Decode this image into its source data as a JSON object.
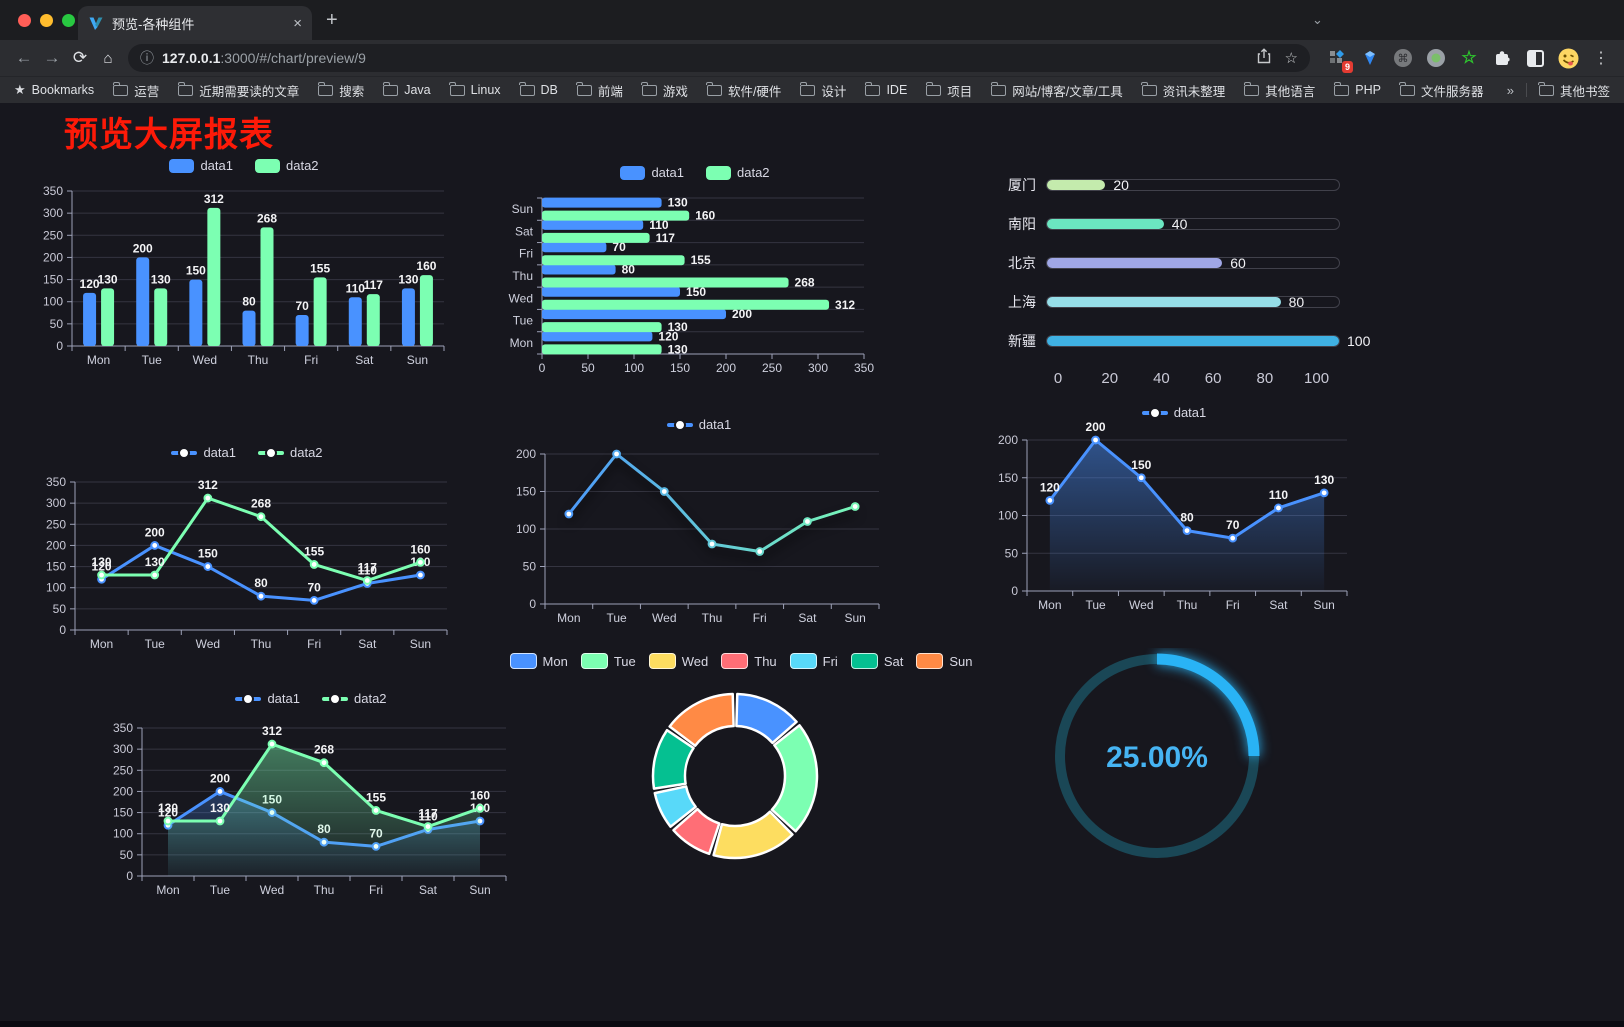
{
  "browser": {
    "tab_title": "预览-各种组件",
    "new_tab": "+",
    "close_tab": "×",
    "url_host": "127.0.0.1",
    "url_rest": ":3000/#/chart/preview/9",
    "bookmarks_label": "Bookmarks",
    "bookmark_folders": [
      "运营",
      "近期需要读的文章",
      "搜索",
      "Java",
      "Linux",
      "DB",
      "前端",
      "游戏",
      "软件/硬件",
      "设计",
      "IDE",
      "项目",
      "网站/博客/文章/工具",
      "资讯未整理",
      "其他语言",
      "PHP",
      "文件服务器"
    ],
    "bookmarks_overflow": "»",
    "other_bookmarks": "其他书签",
    "extension_badge": "9"
  },
  "page": {
    "title": "预览大屏报表",
    "title_color": "#fd1a08"
  },
  "chart_data": [
    {
      "container": "c1",
      "name": "bar-chart-vertical",
      "type": "bar",
      "legend": "rect",
      "categories": [
        "Mon",
        "Tue",
        "Wed",
        "Thu",
        "Fri",
        "Sat",
        "Sun"
      ],
      "series": [
        {
          "name": "data1",
          "color": "#4992ff",
          "values": [
            120,
            200,
            150,
            80,
            70,
            110,
            130
          ]
        },
        {
          "name": "data2",
          "color": "#7cffb2",
          "values": [
            130,
            130,
            312,
            268,
            155,
            117,
            160
          ]
        }
      ],
      "ylim": [
        0,
        350
      ],
      "ytick_step": 50,
      "show_labels": true,
      "grid": true
    },
    {
      "container": "c2",
      "name": "bar-chart-horizontal",
      "type": "hbar",
      "legend": "rect",
      "categories": [
        "Mon",
        "Tue",
        "Wed",
        "Thu",
        "Fri",
        "Sat",
        "Sun"
      ],
      "series": [
        {
          "name": "data1",
          "color": "#4992ff",
          "values": [
            120,
            200,
            150,
            80,
            70,
            110,
            130
          ]
        },
        {
          "name": "data2",
          "color": "#7cffb2",
          "values": [
            130,
            130,
            312,
            268,
            155,
            117,
            160
          ]
        }
      ],
      "xlim": [
        0,
        350
      ],
      "xtick_step": 50,
      "show_labels": true
    },
    {
      "container": "c3",
      "name": "progress-bars-chart",
      "type": "progress",
      "max": 100,
      "rows": [
        {
          "label": "厦门",
          "value": 20,
          "color": "#c4ebad"
        },
        {
          "label": "南阳",
          "value": 40,
          "color": "#6be6c1"
        },
        {
          "label": "北京",
          "value": 60,
          "color": "#a0a7e6"
        },
        {
          "label": "上海",
          "value": 80,
          "color": "#96dee8"
        },
        {
          "label": "新疆",
          "value": 100,
          "color": "#3fb1e3"
        }
      ],
      "ticks": [
        0,
        20,
        40,
        60,
        80,
        100
      ]
    },
    {
      "container": "c4",
      "name": "line-chart-two-series",
      "type": "line",
      "legend": "line",
      "categories": [
        "Mon",
        "Tue",
        "Wed",
        "Thu",
        "Fri",
        "Sat",
        "Sun"
      ],
      "series": [
        {
          "name": "data1",
          "color": "#4992ff",
          "values": [
            120,
            200,
            150,
            80,
            70,
            110,
            130
          ]
        },
        {
          "name": "data2",
          "color": "#7cffb2",
          "values": [
            130,
            130,
            312,
            268,
            155,
            117,
            160
          ]
        }
      ],
      "ylim": [
        0,
        350
      ],
      "ytick_step": 50,
      "show_labels": true
    },
    {
      "container": "c5",
      "name": "line-chart-gradient",
      "type": "line",
      "legend": "line",
      "categories": [
        "Mon",
        "Tue",
        "Wed",
        "Thu",
        "Fri",
        "Sat",
        "Sun"
      ],
      "series": [
        {
          "name": "data1",
          "color": "#4992ff",
          "gradient": [
            "#4992ff",
            "#7cffb2"
          ],
          "shadow": true,
          "values": [
            120,
            200,
            150,
            80,
            70,
            110,
            130
          ]
        }
      ],
      "ylim": [
        0,
        200
      ],
      "ytick_step": 50,
      "show_labels": false
    },
    {
      "container": "c6",
      "name": "line-chart-area",
      "type": "line",
      "legend": "line",
      "categories": [
        "Mon",
        "Tue",
        "Wed",
        "Thu",
        "Fri",
        "Sat",
        "Sun"
      ],
      "series": [
        {
          "name": "data1",
          "color": "#4992ff",
          "area": true,
          "values": [
            120,
            200,
            150,
            80,
            70,
            110,
            130
          ]
        }
      ],
      "ylim": [
        0,
        200
      ],
      "ytick_step": 50,
      "show_labels": true
    },
    {
      "container": "c7",
      "name": "line-chart-two-series-area",
      "type": "line",
      "legend": "line",
      "categories": [
        "Mon",
        "Tue",
        "Wed",
        "Thu",
        "Fri",
        "Sat",
        "Sun"
      ],
      "series": [
        {
          "name": "data1",
          "color": "#4992ff",
          "area": true,
          "values": [
            120,
            200,
            150,
            80,
            70,
            110,
            130
          ]
        },
        {
          "name": "data2",
          "color": "#7cffb2",
          "area": true,
          "values": [
            130,
            130,
            312,
            268,
            155,
            117,
            160
          ]
        }
      ],
      "ylim": [
        0,
        350
      ],
      "ytick_step": 50,
      "show_labels": true
    },
    {
      "container": "c8",
      "name": "donut-chart",
      "type": "pie",
      "inner_radius": 50,
      "outer_radius": 82,
      "center": [
        190,
        128
      ],
      "items": [
        {
          "name": "Mon",
          "value": 120,
          "color": "#4992ff"
        },
        {
          "name": "Tue",
          "value": 200,
          "color": "#7cffb2"
        },
        {
          "name": "Wed",
          "value": 150,
          "color": "#fddd60"
        },
        {
          "name": "Thu",
          "value": 80,
          "color": "#ff6e76"
        },
        {
          "name": "Fri",
          "value": 70,
          "color": "#58d9f9"
        },
        {
          "name": "Sat",
          "value": 110,
          "color": "#05c091"
        },
        {
          "name": "Sun",
          "value": 130,
          "color": "#ff8a45"
        }
      ]
    },
    {
      "container": "c9",
      "name": "gauge-chart",
      "type": "gauge",
      "value": 25,
      "display": "25.00%",
      "max": 100,
      "color": "#29b3f5",
      "track_color": "#1a4756",
      "text_color": "#46b4f3",
      "center": [
        127,
        108
      ],
      "radius": 97
    }
  ]
}
